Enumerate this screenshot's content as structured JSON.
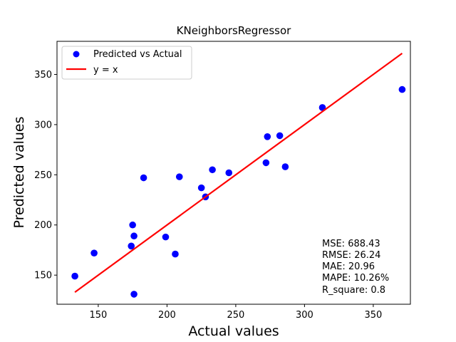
{
  "chart_data": {
    "type": "scatter",
    "title": "KNeighborsRegressor",
    "xlabel": "Actual values",
    "ylabel": "Predicted values",
    "xlim": [
      120,
      377
    ],
    "ylim": [
      121,
      383
    ],
    "xticks": [
      150,
      200,
      250,
      300,
      350
    ],
    "yticks": [
      150,
      200,
      250,
      300,
      350
    ],
    "grid": false,
    "legend_position": "top-left",
    "series": [
      {
        "name": "Predicted vs Actual",
        "kind": "scatter",
        "color": "#0000ff",
        "points": [
          {
            "x": 133,
            "y": 149
          },
          {
            "x": 147,
            "y": 172
          },
          {
            "x": 174,
            "y": 179
          },
          {
            "x": 175,
            "y": 200
          },
          {
            "x": 176,
            "y": 189
          },
          {
            "x": 176,
            "y": 131
          },
          {
            "x": 183,
            "y": 247
          },
          {
            "x": 199,
            "y": 188
          },
          {
            "x": 206,
            "y": 171
          },
          {
            "x": 209,
            "y": 248
          },
          {
            "x": 225,
            "y": 237
          },
          {
            "x": 228,
            "y": 228
          },
          {
            "x": 233,
            "y": 255
          },
          {
            "x": 245,
            "y": 252
          },
          {
            "x": 272,
            "y": 262
          },
          {
            "x": 273,
            "y": 288
          },
          {
            "x": 282,
            "y": 289
          },
          {
            "x": 286,
            "y": 258
          },
          {
            "x": 313,
            "y": 317
          },
          {
            "x": 371,
            "y": 335
          }
        ]
      },
      {
        "name": "y = x",
        "kind": "line",
        "color": "#ff0000",
        "points": [
          {
            "x": 133,
            "y": 133
          },
          {
            "x": 371,
            "y": 371
          }
        ]
      }
    ],
    "metrics": [
      "MSE: 688.43",
      "RMSE: 26.24",
      "MAE: 20.96",
      "MAPE: 10.26%",
      "R_square: 0.8"
    ]
  }
}
